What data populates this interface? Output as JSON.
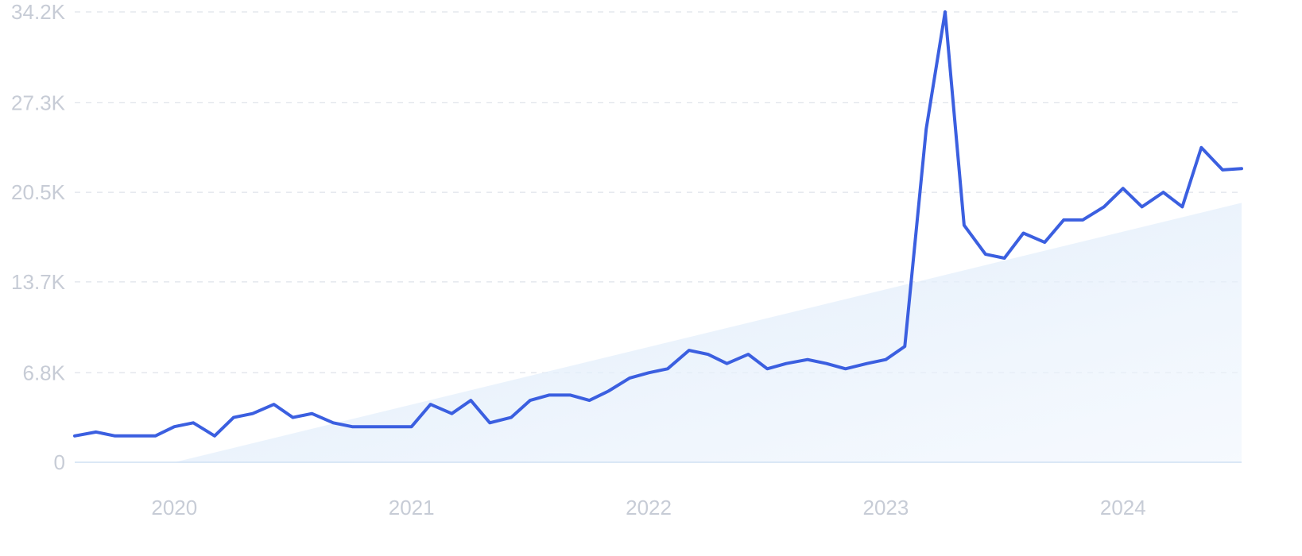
{
  "chart_data": {
    "type": "line",
    "title": "",
    "xlabel": "",
    "ylabel": "",
    "xlim": [
      2019.58,
      2024.5
    ],
    "ylim": [
      0,
      34200
    ],
    "grid": true,
    "y_ticks": [
      {
        "value": 0,
        "label": "0"
      },
      {
        "value": 6800,
        "label": "6.8K"
      },
      {
        "value": 13700,
        "label": "13.7K"
      },
      {
        "value": 20500,
        "label": "20.5K"
      },
      {
        "value": 27300,
        "label": "27.3K"
      },
      {
        "value": 34200,
        "label": "34.2K"
      }
    ],
    "x_ticks": [
      {
        "value": 2020,
        "label": "2020"
      },
      {
        "value": 2021,
        "label": "2021"
      },
      {
        "value": 2022,
        "label": "2022"
      },
      {
        "value": 2023,
        "label": "2023"
      },
      {
        "value": 2024,
        "label": "2024"
      }
    ],
    "colors": {
      "line": "#3b5fe0",
      "trend_fill": "#dbe9fa"
    },
    "trend": {
      "x": [
        2020.0,
        2024.5
      ],
      "y": [
        0,
        19700
      ]
    },
    "series": [
      {
        "x": [
          2019.58,
          2019.67,
          2019.75,
          2019.83,
          2019.92,
          2020.0,
          2020.08,
          2020.17,
          2020.25,
          2020.33,
          2020.42,
          2020.5,
          2020.58,
          2020.67,
          2020.75,
          2020.83,
          2020.92,
          2021.0,
          2021.08,
          2021.17,
          2021.25,
          2021.33,
          2021.42,
          2021.5,
          2021.58,
          2021.67,
          2021.75,
          2021.83,
          2021.92,
          2022.0,
          2022.08,
          2022.17,
          2022.25,
          2022.33,
          2022.42,
          2022.5,
          2022.58,
          2022.67,
          2022.75,
          2022.83,
          2022.92,
          2023.0,
          2023.08,
          2023.17,
          2023.25,
          2023.33,
          2023.42,
          2023.5,
          2023.58,
          2023.67,
          2023.75,
          2023.83,
          2023.92,
          2024.0,
          2024.08,
          2024.17,
          2024.25,
          2024.33,
          2024.42,
          2024.5
        ],
        "y": [
          2000,
          2300,
          2000,
          2000,
          2000,
          2700,
          3000,
          2000,
          3400,
          3700,
          4400,
          3400,
          3700,
          3000,
          2700,
          2700,
          2700,
          2700,
          4400,
          3700,
          4700,
          3000,
          3400,
          4700,
          5100,
          5100,
          4700,
          5400,
          6400,
          6800,
          7100,
          8500,
          8200,
          7500,
          8200,
          7100,
          7500,
          7800,
          7500,
          7100,
          7500,
          7800,
          8800,
          25300,
          34200,
          18000,
          15800,
          15500,
          17400,
          16700,
          18400,
          18400,
          19400,
          20800,
          19400,
          20500,
          19400,
          23900,
          22200,
          22300
        ]
      }
    ]
  }
}
